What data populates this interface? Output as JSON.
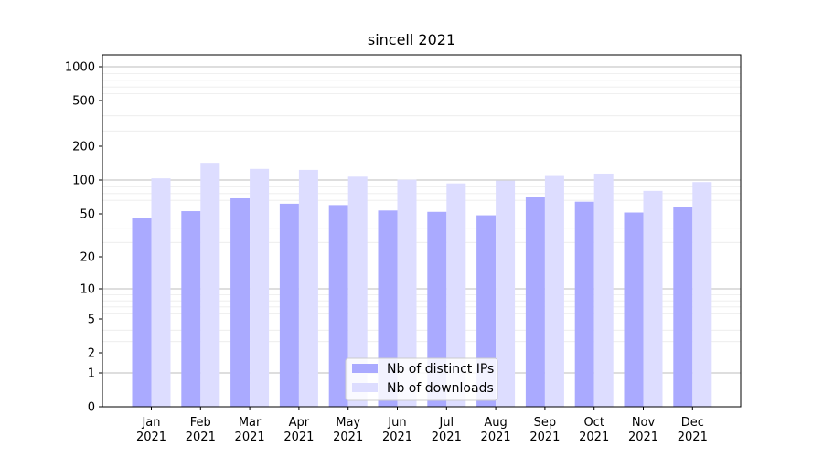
{
  "chart_data": {
    "type": "bar",
    "title": "sincell 2021",
    "xlabel": "",
    "ylabel": "",
    "scale": "log-like (0 at base)",
    "categories": [
      {
        "month": "Jan",
        "year": "2021"
      },
      {
        "month": "Feb",
        "year": "2021"
      },
      {
        "month": "Mar",
        "year": "2021"
      },
      {
        "month": "Apr",
        "year": "2021"
      },
      {
        "month": "May",
        "year": "2021"
      },
      {
        "month": "Jun",
        "year": "2021"
      },
      {
        "month": "Jul",
        "year": "2021"
      },
      {
        "month": "Aug",
        "year": "2021"
      },
      {
        "month": "Sep",
        "year": "2021"
      },
      {
        "month": "Oct",
        "year": "2021"
      },
      {
        "month": "Nov",
        "year": "2021"
      },
      {
        "month": "Dec",
        "year": "2021"
      }
    ],
    "series": [
      {
        "name": "Nb of distinct IPs",
        "color": "#aaaaff",
        "values": [
          47,
          54,
          73,
          65,
          63,
          55,
          53,
          49,
          75,
          68,
          52,
          60
        ]
      },
      {
        "name": "Nb of downloads",
        "color": "#ddddff",
        "values": [
          105,
          151,
          133,
          130,
          110,
          101,
          95,
          99,
          112,
          119,
          84,
          97
        ]
      }
    ],
    "yticks": [
      "0",
      "1",
      "2",
      "5",
      "10",
      "20",
      "50",
      "100",
      "200",
      "500",
      "1000"
    ],
    "ytick_values": [
      0,
      1,
      2,
      5,
      10,
      20,
      50,
      100,
      200,
      500,
      1000
    ],
    "ylim": [
      0,
      1200
    ],
    "grid": true,
    "legend_position": "bottom-center"
  }
}
